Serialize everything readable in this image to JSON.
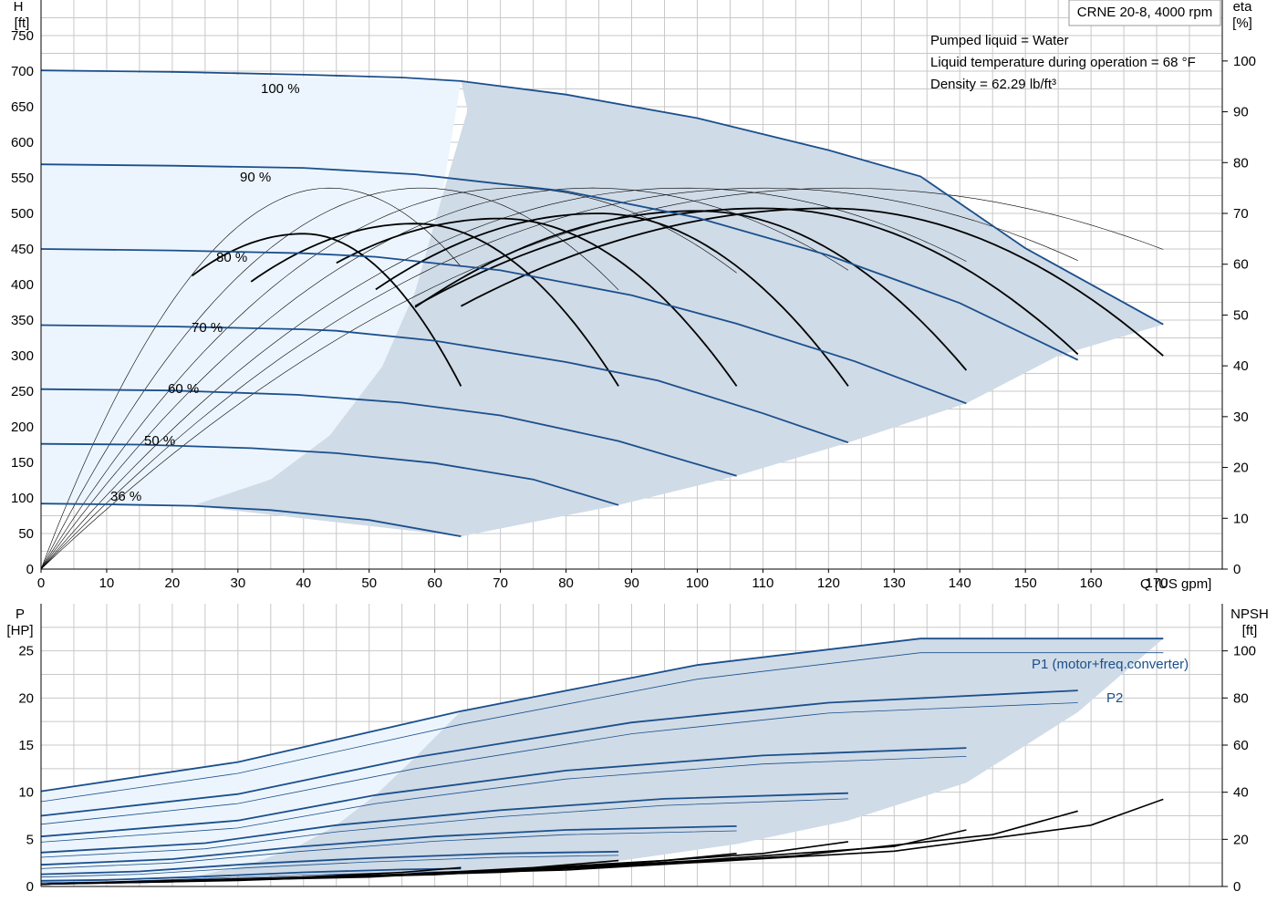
{
  "title": "CRNE 20-8, 4000 rpm",
  "info": [
    "Pumped liquid = Water",
    "Liquid temperature during operation = 68 °F",
    "Density = 62.29 lb/ft³"
  ],
  "colors": {
    "curve_blue": "#1b4f8c",
    "region_fill": "#cfdbe7",
    "region_light": "#ecf5fd",
    "grid": "#c8c8c8",
    "eta": "#000000"
  },
  "chart_data": [
    {
      "type": "line",
      "name": "head",
      "xlabel": "Q [US gpm]",
      "ylabel": [
        "H",
        "[ft]"
      ],
      "ylabel_right": [
        "eta",
        "[%]"
      ],
      "xlim": [
        0,
        180
      ],
      "ylim": [
        0,
        800
      ],
      "y2lim": [
        0,
        112
      ],
      "x_ticks": [
        0,
        10,
        20,
        30,
        40,
        50,
        60,
        70,
        80,
        90,
        100,
        110,
        120,
        130,
        140,
        150,
        160,
        170
      ],
      "y_ticks": [
        0,
        50,
        100,
        150,
        200,
        250,
        300,
        350,
        400,
        450,
        500,
        550,
        600,
        650,
        700,
        750
      ],
      "y2_ticks": [
        0,
        10,
        20,
        30,
        40,
        50,
        60,
        70,
        80,
        90,
        100
      ],
      "speed_curves": [
        {
          "name": "100 %",
          "points": [
            [
              0,
              701
            ],
            [
              20,
              699
            ],
            [
              40,
              695
            ],
            [
              55,
              691
            ],
            [
              64,
              686
            ],
            [
              80,
              667
            ],
            [
              100,
              634
            ],
            [
              120,
              589
            ],
            [
              134,
              552
            ],
            [
              150,
              451
            ],
            [
              171,
              344
            ]
          ]
        },
        {
          "name": "90 %",
          "points": [
            [
              0,
              569
            ],
            [
              20,
              567
            ],
            [
              40,
              564
            ],
            [
              57,
              555
            ],
            [
              80,
              531
            ],
            [
              100,
              494
            ],
            [
              120,
              441
            ],
            [
              140,
              374
            ],
            [
              158,
              294
            ]
          ]
        },
        {
          "name": "80 %",
          "points": [
            [
              0,
              450
            ],
            [
              20,
              448
            ],
            [
              40,
              444
            ],
            [
              51,
              439
            ],
            [
              70,
              420
            ],
            [
              90,
              385
            ],
            [
              106,
              345
            ],
            [
              124,
              292
            ],
            [
              141,
              233
            ]
          ]
        },
        {
          "name": "70 %",
          "points": [
            [
              0,
              343
            ],
            [
              20,
              341
            ],
            [
              40,
              337
            ],
            [
              45,
              335
            ],
            [
              60,
              321
            ],
            [
              80,
              291
            ],
            [
              94,
              265
            ],
            [
              110,
              219
            ],
            [
              123,
              178
            ]
          ]
        },
        {
          "name": "60 %",
          "points": [
            [
              0,
              253
            ],
            [
              20,
              251
            ],
            [
              39,
              245
            ],
            [
              55,
              234
            ],
            [
              70,
              216
            ],
            [
              88,
              180
            ],
            [
              106,
              131
            ]
          ]
        },
        {
          "name": "50 %",
          "points": [
            [
              0,
              176
            ],
            [
              15,
              175
            ],
            [
              32,
              170
            ],
            [
              45,
              163
            ],
            [
              60,
              149
            ],
            [
              75,
              126
            ],
            [
              88,
              90
            ]
          ]
        },
        {
          "name": "36 %",
          "points": [
            [
              0,
              92
            ],
            [
              10,
              91
            ],
            [
              23,
              89
            ],
            [
              35,
              83
            ],
            [
              50,
              69
            ],
            [
              64,
              46
            ]
          ]
        }
      ],
      "region_outline": [
        [
          23,
          89
        ],
        [
          35,
          126
        ],
        [
          44,
          188
        ],
        [
          52,
          285
        ],
        [
          57,
          390
        ],
        [
          61,
          520
        ],
        [
          65,
          645
        ],
        [
          64,
          686
        ],
        [
          80,
          667
        ],
        [
          100,
          634
        ],
        [
          120,
          589
        ],
        [
          134,
          552
        ],
        [
          150,
          451
        ],
        [
          171,
          344
        ],
        [
          155,
          300
        ],
        [
          141,
          233
        ],
        [
          123,
          178
        ],
        [
          106,
          131
        ],
        [
          88,
          90
        ],
        [
          64,
          46
        ]
      ],
      "light_region_outline": [
        [
          0,
          701
        ],
        [
          64,
          686
        ],
        [
          61,
          520
        ],
        [
          57,
          390
        ],
        [
          52,
          285
        ],
        [
          44,
          188
        ],
        [
          35,
          126
        ],
        [
          23,
          89
        ],
        [
          0,
          92
        ]
      ],
      "eta_curves_thick": [
        {
          "range": [
            23,
            64
          ],
          "peak_q": 40,
          "peak": 66
        },
        {
          "range": [
            32,
            88
          ],
          "peak_q": 57,
          "peak": 68
        },
        {
          "range": [
            45,
            106
          ],
          "peak_q": 70,
          "peak": 69
        },
        {
          "range": [
            51,
            123
          ],
          "peak_q": 85,
          "peak": 70
        },
        {
          "range": [
            57,
            141
          ],
          "peak_q": 100,
          "peak": 70.5
        },
        {
          "range": [
            57,
            158
          ],
          "peak_q": 110,
          "peak": 71
        },
        {
          "range": [
            64,
            171
          ],
          "peak_q": 120,
          "peak": 71
        }
      ],
      "eta_curves_thin": [
        {
          "range": [
            0,
            64
          ],
          "peak_q": 44,
          "peak": 75
        },
        {
          "range": [
            0,
            88
          ],
          "peak_q": 58,
          "peak": 75
        },
        {
          "range": [
            0,
            106
          ],
          "peak_q": 72,
          "peak": 75
        },
        {
          "range": [
            0,
            123
          ],
          "peak_q": 84,
          "peak": 75
        },
        {
          "range": [
            0,
            141
          ],
          "peak_q": 98,
          "peak": 75
        },
        {
          "range": [
            0,
            158
          ],
          "peak_q": 110,
          "peak": 75
        },
        {
          "range": [
            0,
            171
          ],
          "peak_q": 122,
          "peak": 75
        }
      ]
    },
    {
      "type": "line",
      "name": "power",
      "ylabel": [
        "P",
        "[HP]"
      ],
      "ylabel_right": [
        "NPSH",
        "[ft]"
      ],
      "xlim": [
        0,
        180
      ],
      "ylim": [
        0,
        30
      ],
      "y2lim": [
        0,
        120
      ],
      "y_ticks": [
        0,
        5,
        10,
        15,
        20,
        25
      ],
      "y2_ticks": [
        0,
        20,
        40,
        60,
        80,
        100
      ],
      "p1_label": "P1 (motor+freq.converter)",
      "p2_label": "P2",
      "p1_curves": [
        {
          "points": [
            [
              0,
              10.1
            ],
            [
              30,
              13.2
            ],
            [
              64,
              18.6
            ],
            [
              100,
              23.5
            ],
            [
              134,
              26.3
            ],
            [
              171,
              26.3
            ]
          ]
        },
        {
          "points": [
            [
              0,
              7.5
            ],
            [
              30,
              9.8
            ],
            [
              57,
              13.7
            ],
            [
              90,
              17.4
            ],
            [
              120,
              19.5
            ],
            [
              158,
              20.8
            ]
          ]
        },
        {
          "points": [
            [
              0,
              5.3
            ],
            [
              30,
              7.0
            ],
            [
              51,
              9.7
            ],
            [
              80,
              12.3
            ],
            [
              110,
              13.9
            ],
            [
              141,
              14.7
            ]
          ]
        },
        {
          "points": [
            [
              0,
              3.6
            ],
            [
              25,
              4.6
            ],
            [
              45,
              6.5
            ],
            [
              70,
              8.1
            ],
            [
              95,
              9.3
            ],
            [
              123,
              9.9
            ]
          ]
        },
        {
          "points": [
            [
              0,
              2.3
            ],
            [
              20,
              2.9
            ],
            [
              39,
              4.2
            ],
            [
              60,
              5.3
            ],
            [
              80,
              6.0
            ],
            [
              106,
              6.4
            ]
          ]
        },
        {
          "points": [
            [
              0,
              1.3
            ],
            [
              15,
              1.6
            ],
            [
              32,
              2.4
            ],
            [
              50,
              3.0
            ],
            [
              70,
              3.5
            ],
            [
              88,
              3.7
            ]
          ]
        },
        {
          "points": [
            [
              0,
              0.6
            ],
            [
              10,
              0.7
            ],
            [
              23,
              1.0
            ],
            [
              40,
              1.5
            ],
            [
              55,
              1.8
            ],
            [
              64,
              1.9
            ]
          ]
        }
      ],
      "p2_curves": [
        {
          "points": [
            [
              0,
              9.0
            ],
            [
              30,
              12.0
            ],
            [
              64,
              17.2
            ],
            [
              100,
              22.0
            ],
            [
              134,
              24.8
            ],
            [
              171,
              24.8
            ]
          ]
        },
        {
          "points": [
            [
              0,
              6.6
            ],
            [
              30,
              8.8
            ],
            [
              57,
              12.5
            ],
            [
              90,
              16.2
            ],
            [
              120,
              18.4
            ],
            [
              158,
              19.5
            ]
          ]
        },
        {
          "points": [
            [
              0,
              4.7
            ],
            [
              30,
              6.2
            ],
            [
              51,
              8.8
            ],
            [
              80,
              11.4
            ],
            [
              110,
              13.0
            ],
            [
              141,
              13.8
            ]
          ]
        },
        {
          "points": [
            [
              0,
              3.1
            ],
            [
              25,
              4.0
            ],
            [
              45,
              5.8
            ],
            [
              70,
              7.4
            ],
            [
              95,
              8.6
            ],
            [
              123,
              9.3
            ]
          ]
        },
        {
          "points": [
            [
              0,
              1.9
            ],
            [
              20,
              2.5
            ],
            [
              39,
              3.7
            ],
            [
              60,
              4.8
            ],
            [
              80,
              5.5
            ],
            [
              106,
              5.9
            ]
          ]
        },
        {
          "points": [
            [
              0,
              1.0
            ],
            [
              15,
              1.3
            ],
            [
              32,
              2.0
            ],
            [
              50,
              2.6
            ],
            [
              70,
              3.1
            ],
            [
              88,
              3.3
            ]
          ]
        },
        {
          "points": [
            [
              0,
              0.4
            ],
            [
              10,
              0.5
            ],
            [
              23,
              0.8
            ],
            [
              40,
              1.2
            ],
            [
              55,
              1.5
            ],
            [
              64,
              1.6
            ]
          ]
        }
      ],
      "region_outline": [
        [
          23,
          1.0
        ],
        [
          32,
          2.4
        ],
        [
          39,
          4.2
        ],
        [
          45,
          6.5
        ],
        [
          51,
          9.7
        ],
        [
          57,
          13.7
        ],
        [
          64,
          18.6
        ],
        [
          100,
          23.5
        ],
        [
          134,
          26.3
        ],
        [
          171,
          26.3
        ],
        [
          158,
          18.5
        ],
        [
          141,
          11.0
        ],
        [
          123,
          7.0
        ],
        [
          106,
          4.5
        ],
        [
          88,
          2.7
        ],
        [
          64,
          1.6
        ]
      ],
      "light_region_outline": [
        [
          0,
          10.1
        ],
        [
          30,
          13.2
        ],
        [
          64,
          18.6
        ],
        [
          57,
          13.7
        ],
        [
          51,
          9.7
        ],
        [
          45,
          6.5
        ],
        [
          39,
          4.2
        ],
        [
          32,
          2.4
        ],
        [
          23,
          1.0
        ],
        [
          0,
          0.4
        ]
      ],
      "npsh_curves": [
        {
          "points": [
            [
              0,
              1
            ],
            [
              20,
              2
            ],
            [
              40,
              4
            ],
            [
              55,
              6
            ],
            [
              64,
              8
            ]
          ]
        },
        {
          "points": [
            [
              0,
              1
            ],
            [
              30,
              2.5
            ],
            [
              55,
              5
            ],
            [
              75,
              8
            ],
            [
              88,
              11
            ]
          ]
        },
        {
          "points": [
            [
              0,
              1
            ],
            [
              40,
              3.5
            ],
            [
              70,
              7
            ],
            [
              95,
              11
            ],
            [
              106,
              14
            ]
          ]
        },
        {
          "points": [
            [
              0,
              1
            ],
            [
              50,
              4
            ],
            [
              85,
              9
            ],
            [
              110,
              14
            ],
            [
              123,
              19
            ]
          ]
        },
        {
          "points": [
            [
              0,
              1
            ],
            [
              60,
              5
            ],
            [
              100,
              11
            ],
            [
              130,
              17
            ],
            [
              141,
              24
            ]
          ]
        },
        {
          "points": [
            [
              0,
              1
            ],
            [
              70,
              6
            ],
            [
              115,
              13
            ],
            [
              145,
              22
            ],
            [
              158,
              32
            ]
          ]
        },
        {
          "points": [
            [
              0,
              1
            ],
            [
              80,
              7
            ],
            [
              130,
              15
            ],
            [
              160,
              26
            ],
            [
              171,
              37
            ]
          ]
        }
      ]
    }
  ]
}
